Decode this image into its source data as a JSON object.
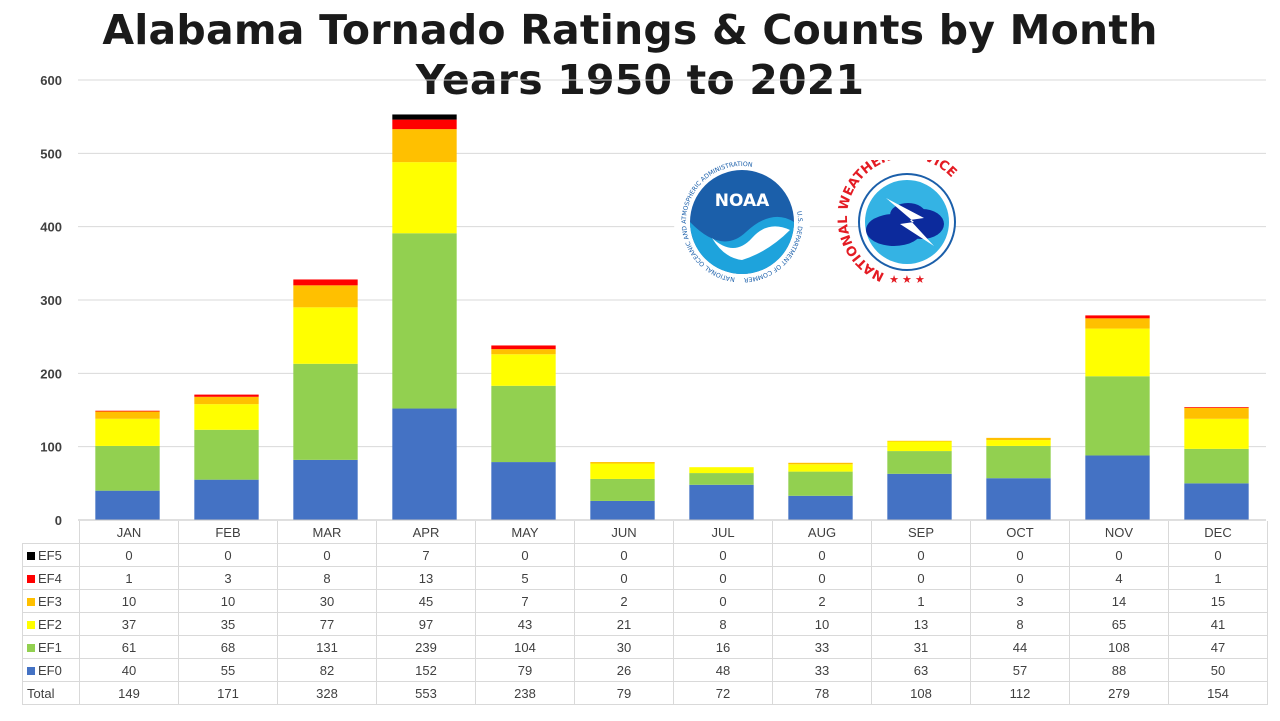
{
  "title": [
    "Alabama Tornado Ratings & Counts by Month",
    "Years 1950 to 2021"
  ],
  "chart_data": {
    "type": "bar",
    "stacked": true,
    "title": "Alabama Tornado Ratings & Counts by Month Years 1950 to 2021",
    "categories": [
      "JAN",
      "FEB",
      "MAR",
      "APR",
      "MAY",
      "JUN",
      "JUL",
      "AUG",
      "SEP",
      "OCT",
      "NOV",
      "DEC"
    ],
    "series": [
      {
        "name": "EF0",
        "color": "#4472C4",
        "values": [
          40,
          55,
          82,
          152,
          79,
          26,
          48,
          33,
          63,
          57,
          88,
          50
        ]
      },
      {
        "name": "EF1",
        "color": "#92D050",
        "values": [
          61,
          68,
          131,
          239,
          104,
          30,
          16,
          33,
          31,
          44,
          108,
          47
        ]
      },
      {
        "name": "EF2",
        "color": "#FFFF00",
        "values": [
          37,
          35,
          77,
          97,
          43,
          21,
          8,
          10,
          13,
          8,
          65,
          41
        ]
      },
      {
        "name": "EF3",
        "color": "#FFC000",
        "values": [
          10,
          10,
          30,
          45,
          7,
          2,
          0,
          2,
          1,
          3,
          14,
          15
        ]
      },
      {
        "name": "EF4",
        "color": "#FF0000",
        "values": [
          1,
          3,
          8,
          13,
          5,
          0,
          0,
          0,
          0,
          0,
          4,
          1
        ]
      },
      {
        "name": "EF5",
        "color": "#000000",
        "values": [
          0,
          0,
          0,
          7,
          0,
          0,
          0,
          0,
          0,
          0,
          0,
          0
        ]
      }
    ],
    "table_order": [
      "EF5",
      "EF4",
      "EF3",
      "EF2",
      "EF1",
      "EF0"
    ],
    "totals_label": "Total",
    "totals": [
      149,
      171,
      328,
      553,
      238,
      79,
      72,
      78,
      108,
      112,
      279,
      154
    ],
    "ylim": [
      0,
      600
    ],
    "yticks": [
      0,
      100,
      200,
      300,
      400,
      500,
      600
    ],
    "grid": true,
    "legend": "data-table"
  },
  "logos": {
    "noaa": {
      "wordmark": "NOAA",
      "ring_text": "NATIONAL OCEANIC AND ATMOSPHERIC ADMINISTRATION",
      "ring_bottom": "U.S. DEPARTMENT OF COMMERCE"
    },
    "nws": {
      "ring_text": "NATIONAL WEATHER SERVICE"
    }
  }
}
